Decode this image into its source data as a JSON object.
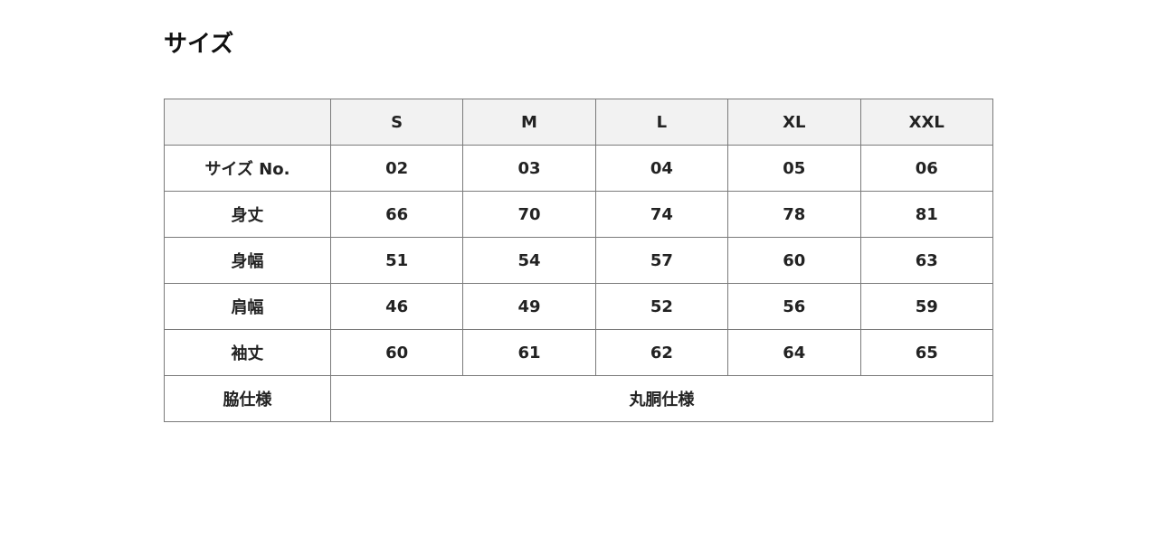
{
  "title": "サイズ",
  "table": {
    "headers": [
      "",
      "S",
      "M",
      "L",
      "XL",
      "XXL"
    ],
    "rows": [
      {
        "label": "サイズ No.",
        "values": [
          "02",
          "03",
          "04",
          "05",
          "06"
        ]
      },
      {
        "label": "身丈",
        "values": [
          "66",
          "70",
          "74",
          "78",
          "81"
        ]
      },
      {
        "label": "身幅",
        "values": [
          "51",
          "54",
          "57",
          "60",
          "63"
        ]
      },
      {
        "label": "肩幅",
        "values": [
          "46",
          "49",
          "52",
          "56",
          "59"
        ]
      },
      {
        "label": "袖丈",
        "values": [
          "60",
          "61",
          "62",
          "64",
          "65"
        ]
      }
    ],
    "footer": {
      "label": "脇仕様",
      "value": "丸胴仕様"
    }
  }
}
